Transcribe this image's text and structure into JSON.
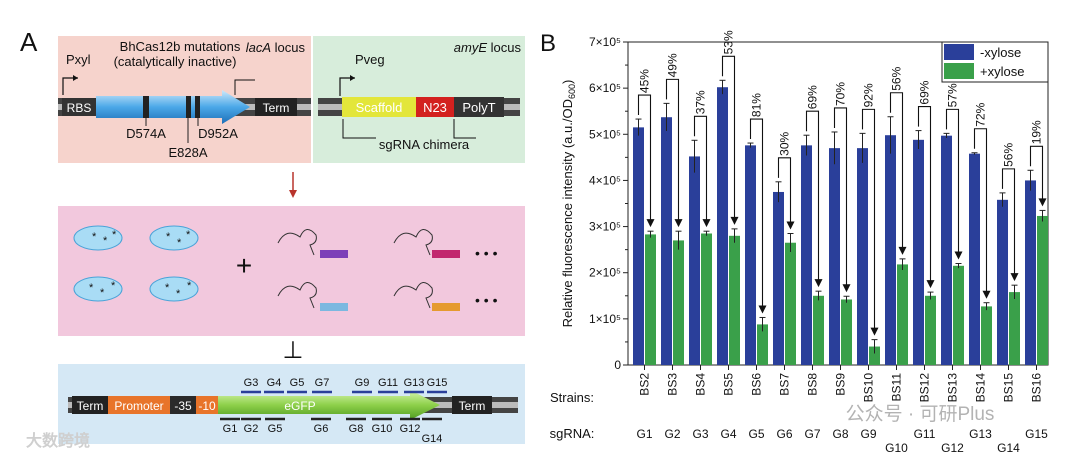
{
  "panel_a": {
    "label": "A",
    "top_left": {
      "locus": "lacA",
      "locus_suffix": "locus",
      "pxyl": "Pxyl",
      "mutation_title": "BhCas12b mutations",
      "mutation_subtitle": "(catalytically inactive)",
      "rbs": "RBS",
      "term": "Term",
      "mutations": [
        "D574A",
        "E828A",
        "D952A"
      ]
    },
    "top_right": {
      "locus": "amyE",
      "locus_suffix": "locus",
      "pveg": "Pveg",
      "scaffold": "Scaffold",
      "n23": "N23",
      "polyt": "PolyT",
      "chimera": "sgRNA chimera"
    },
    "middle": {
      "plus": "+",
      "dots": "• • •"
    },
    "inhibit": "⊥",
    "bottom": {
      "term_left": "Term",
      "promoter": "Promoter",
      "m35": "-35",
      "m10": "-10",
      "gene": "eGFP",
      "term_right": "Term",
      "top_guides": [
        "G3",
        "G4",
        "G5",
        "G7",
        "G9",
        "G11",
        "G13",
        "G15"
      ],
      "bottom_guides": [
        "G1",
        "G2",
        "G5",
        "G6",
        "G8",
        "G10",
        "G12",
        "G14"
      ]
    }
  },
  "panel_b": {
    "label": "B",
    "row_labels": {
      "strains": "Strains:",
      "sgrna": "sgRNA:"
    },
    "watermark": "公众号 · 可研Plus",
    "logo_text": "大数跨境"
  },
  "colors": {
    "minus": "#2a3f9a",
    "plus": "#3aa04a"
  },
  "chart_data": {
    "type": "bar",
    "ylabel": "Relative fluorescence intensity (a.u./OD600)",
    "ylim": [
      0,
      700000
    ],
    "yticks": [
      "0",
      "1×10⁵",
      "2×10⁵",
      "3×10⁵",
      "4×10⁵",
      "5×10⁵",
      "6×10⁵",
      "7×10⁵"
    ],
    "legend": [
      "-xylose",
      "+xylose"
    ],
    "legend_position": "top-right",
    "categories": [
      "BS2",
      "BS3",
      "BS4",
      "BS5",
      "BS6",
      "BS7",
      "BS8",
      "BS9",
      "BS10",
      "BS11",
      "BS12",
      "BS13",
      "BS14",
      "BS15",
      "BS16"
    ],
    "sgrnas": [
      "G1",
      "G2",
      "G3",
      "G4",
      "G5",
      "G6",
      "G7",
      "G8",
      "G9",
      "G10",
      "G11",
      "G12",
      "G13",
      "G14",
      "G15"
    ],
    "series": [
      {
        "name": "-xylose",
        "values": [
          515000,
          537000,
          452000,
          602000,
          476000,
          375000,
          476000,
          470000,
          470000,
          498000,
          488000,
          497000,
          458000,
          358000,
          400000
        ],
        "errors": [
          18000,
          30000,
          35000,
          15000,
          5000,
          22000,
          22000,
          35000,
          32000,
          40000,
          20000,
          5000,
          2000,
          15000,
          22000
        ]
      },
      {
        "name": "+xylose",
        "values": [
          283000,
          270000,
          285000,
          280000,
          88000,
          265000,
          150000,
          142000,
          40000,
          218000,
          150000,
          215000,
          127000,
          158000,
          323000
        ],
        "errors": [
          7000,
          20000,
          5000,
          15000,
          15000,
          20000,
          10000,
          7000,
          15000,
          12000,
          8000,
          5000,
          8000,
          15000,
          12000
        ]
      }
    ],
    "repression": [
      "45%",
      "49%",
      "37%",
      "53%",
      "81%",
      "30%",
      "69%",
      "70%",
      "92%",
      "56%",
      "69%",
      "57%",
      "72%",
      "56%",
      "19%"
    ]
  }
}
